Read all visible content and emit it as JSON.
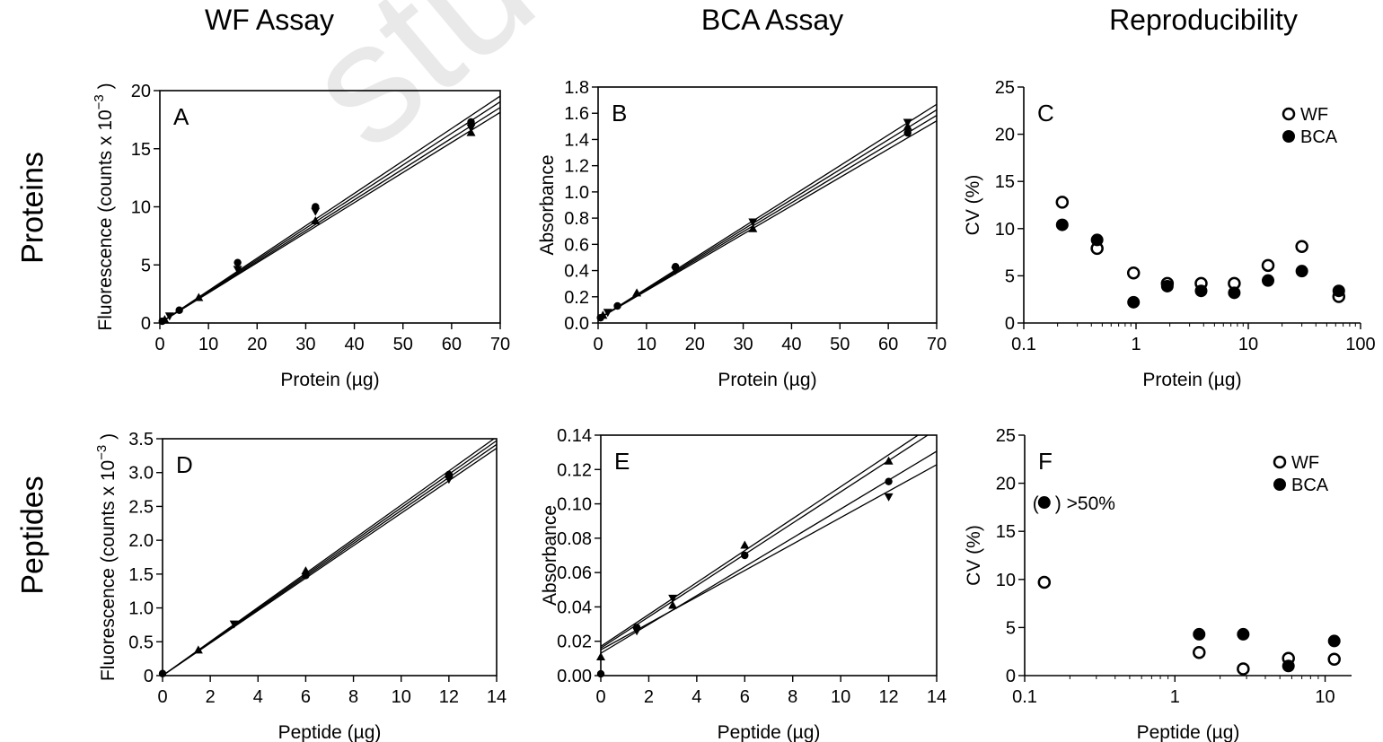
{
  "column_titles": [
    "WF Assay",
    "BCA Assay",
    "Reproducibility"
  ],
  "row_titles": [
    "Proteins",
    "Peptides"
  ],
  "watermark": "studiu material",
  "chart_data": [
    {
      "id": "A",
      "panel_label": "A",
      "type": "line",
      "xlabel": "Protein (µg)",
      "ylabel": "Fluorescence  (counts x 10",
      "ylabel_sup": "−3",
      "ylabel_close": ")",
      "xlim": [
        0,
        70
      ],
      "ylim": [
        0,
        20
      ],
      "xticks": [
        0,
        10,
        20,
        30,
        40,
        50,
        60,
        70
      ],
      "yticks": [
        0,
        5,
        10,
        15,
        20
      ],
      "x": [
        0,
        0.5,
        1,
        2,
        4,
        8,
        16,
        32,
        64
      ],
      "lines": [
        {
          "slope": 0.279,
          "intercept": 0
        },
        {
          "slope": 0.272,
          "intercept": 0
        },
        {
          "slope": 0.265,
          "intercept": 0
        },
        {
          "slope": 0.259,
          "intercept": 0
        }
      ],
      "points": [
        {
          "x": 0.5,
          "y": 0.15
        },
        {
          "x": 1,
          "y": 0.3
        },
        {
          "x": 2,
          "y": 0.6
        },
        {
          "x": 4,
          "y": 1.1
        },
        {
          "x": 8,
          "y": 2.2
        },
        {
          "x": 16,
          "y": 4.6
        },
        {
          "x": 16,
          "y": 5.2
        },
        {
          "x": 32,
          "y": 8.8
        },
        {
          "x": 32,
          "y": 9.6
        },
        {
          "x": 32,
          "y": 10.0
        },
        {
          "x": 64,
          "y": 16.4
        },
        {
          "x": 64,
          "y": 16.8
        },
        {
          "x": 64,
          "y": 17.3
        }
      ]
    },
    {
      "id": "B",
      "panel_label": "B",
      "type": "line",
      "xlabel": "Protein (µg)",
      "ylabel": "Absorbance",
      "xlim": [
        0,
        70
      ],
      "ylim": [
        0,
        1.8
      ],
      "xticks": [
        0,
        10,
        20,
        30,
        40,
        50,
        60,
        70
      ],
      "yticks": [
        0.0,
        0.2,
        0.4,
        0.6,
        0.8,
        1.0,
        1.2,
        1.4,
        1.6,
        1.8
      ],
      "yticks_labels": [
        "0.0",
        "0.2",
        "0.4",
        "0.6",
        "0.8",
        "1.0",
        "1.2",
        "1.4",
        "1.6",
        "1.8"
      ],
      "lines": [
        {
          "slope": 0.0234,
          "intercept": 0.03
        },
        {
          "slope": 0.0228,
          "intercept": 0.03
        },
        {
          "slope": 0.0222,
          "intercept": 0.03
        },
        {
          "slope": 0.0216,
          "intercept": 0.03
        }
      ],
      "points": [
        {
          "x": 0.5,
          "y": 0.04
        },
        {
          "x": 1,
          "y": 0.06
        },
        {
          "x": 2,
          "y": 0.08
        },
        {
          "x": 4,
          "y": 0.13
        },
        {
          "x": 8,
          "y": 0.23
        },
        {
          "x": 16,
          "y": 0.4
        },
        {
          "x": 16,
          "y": 0.43
        },
        {
          "x": 32,
          "y": 0.72
        },
        {
          "x": 32,
          "y": 0.77
        },
        {
          "x": 64,
          "y": 1.45
        },
        {
          "x": 64,
          "y": 1.5
        },
        {
          "x": 64,
          "y": 1.53
        }
      ]
    },
    {
      "id": "C",
      "panel_label": "C",
      "type": "scatter",
      "xscale": "log",
      "xlabel": "Protein (µg)",
      "ylabel": "CV (%)",
      "xlim": [
        0.1,
        100
      ],
      "ylim": [
        0,
        25
      ],
      "xticks": [
        0.1,
        1,
        10,
        100
      ],
      "xticks_labels": [
        "0.1",
        "1",
        "10",
        "100"
      ],
      "yticks": [
        0,
        5,
        10,
        15,
        20,
        25
      ],
      "legend": [
        {
          "name": "WF",
          "marker": "open-circle"
        },
        {
          "name": "BCA",
          "marker": "filled-circle"
        }
      ],
      "legend_position": "top-right",
      "series": [
        {
          "name": "WF",
          "marker": "open-circle",
          "x": [
            0.22,
            0.45,
            0.95,
            1.9,
            3.8,
            7.5,
            15,
            30,
            64
          ],
          "y": [
            12.8,
            7.9,
            5.3,
            4.2,
            4.2,
            4.2,
            6.1,
            8.1,
            2.8
          ]
        },
        {
          "name": "BCA",
          "marker": "filled-circle",
          "x": [
            0.22,
            0.45,
            0.95,
            1.9,
            3.8,
            7.5,
            15,
            30,
            64
          ],
          "y": [
            10.4,
            8.8,
            2.2,
            3.9,
            3.4,
            3.2,
            4.5,
            5.5,
            3.4
          ]
        }
      ]
    },
    {
      "id": "D",
      "panel_label": "D",
      "type": "line",
      "xlabel": "Peptide (µg)",
      "ylabel": "Fluorescence  (counts x 10",
      "ylabel_sup": "−3",
      "ylabel_close": ")",
      "xlim": [
        0,
        14
      ],
      "ylim": [
        0,
        3.5
      ],
      "xticks": [
        0,
        2,
        4,
        6,
        8,
        10,
        12,
        14
      ],
      "yticks": [
        0,
        0.5,
        1.0,
        1.5,
        2.0,
        2.5,
        3.0,
        3.5
      ],
      "yticks_labels": [
        "0",
        "0.5",
        "1.0",
        "1.5",
        "2.0",
        "2.5",
        "3.0",
        "3.5"
      ],
      "lines": [
        {
          "slope": 0.252,
          "intercept": 0
        },
        {
          "slope": 0.248,
          "intercept": 0
        },
        {
          "slope": 0.244,
          "intercept": 0
        },
        {
          "slope": 0.24,
          "intercept": 0
        }
      ],
      "points": [
        {
          "x": 0,
          "y": 0.03
        },
        {
          "x": 1.5,
          "y": 0.38
        },
        {
          "x": 3,
          "y": 0.76
        },
        {
          "x": 6,
          "y": 1.48
        },
        {
          "x": 6,
          "y": 1.55
        },
        {
          "x": 12,
          "y": 2.9
        },
        {
          "x": 12,
          "y": 2.97
        }
      ]
    },
    {
      "id": "E",
      "panel_label": "E",
      "type": "line",
      "xlabel": "Peptide (µg)",
      "ylabel": "Absorbance",
      "xlim": [
        0,
        14
      ],
      "ylim": [
        0,
        0.14
      ],
      "xticks": [
        0,
        2,
        4,
        6,
        8,
        10,
        12,
        14
      ],
      "yticks": [
        0,
        0.02,
        0.04,
        0.06,
        0.08,
        0.1,
        0.12,
        0.14
      ],
      "yticks_labels": [
        "0.00",
        "0.02",
        "0.04",
        "0.06",
        "0.08",
        "0.10",
        "0.12",
        "0.14"
      ],
      "lines": [
        {
          "slope": 0.0093,
          "intercept": 0.017
        },
        {
          "slope": 0.0091,
          "intercept": 0.016
        },
        {
          "slope": 0.0084,
          "intercept": 0.013
        },
        {
          "slope": 0.0077,
          "intercept": 0.015
        }
      ],
      "points": [
        {
          "x": 0,
          "y": 0.001
        },
        {
          "x": 0,
          "y": 0.011
        },
        {
          "x": 1.5,
          "y": 0.026
        },
        {
          "x": 1.5,
          "y": 0.028
        },
        {
          "x": 3,
          "y": 0.041
        },
        {
          "x": 3,
          "y": 0.045
        },
        {
          "x": 6,
          "y": 0.07
        },
        {
          "x": 6,
          "y": 0.076
        },
        {
          "x": 12,
          "y": 0.104
        },
        {
          "x": 12,
          "y": 0.113
        },
        {
          "x": 12,
          "y": 0.125
        }
      ]
    },
    {
      "id": "F",
      "panel_label": "F",
      "type": "scatter",
      "xscale": "log",
      "xlabel": "Peptide (µg)",
      "ylabel": "CV (%)",
      "xlim": [
        0.1,
        15
      ],
      "ylim": [
        0,
        25
      ],
      "xticks": [
        0.1,
        1,
        10
      ],
      "xticks_labels": [
        "0.1",
        "1",
        "10"
      ],
      "yticks": [
        0,
        5,
        10,
        15,
        20,
        25
      ],
      "legend": [
        {
          "name": "WF",
          "marker": "open-circle"
        },
        {
          "name": "BCA",
          "marker": "filled-circle"
        }
      ],
      "legend_position": "top-right",
      "annotation": ") >50%",
      "annotation_open": "(",
      "annotation_point": {
        "x": 0.135,
        "y": 18
      },
      "series": [
        {
          "name": "WF",
          "marker": "open-circle",
          "x": [
            0.135,
            1.45,
            2.85,
            5.7,
            11.5
          ],
          "y": [
            9.7,
            2.4,
            0.7,
            1.8,
            1.7
          ]
        },
        {
          "name": "BCA",
          "marker": "filled-circle",
          "x": [
            1.45,
            2.85,
            5.7,
            11.5
          ],
          "y": [
            4.3,
            4.3,
            1.0,
            3.6
          ]
        }
      ]
    }
  ]
}
